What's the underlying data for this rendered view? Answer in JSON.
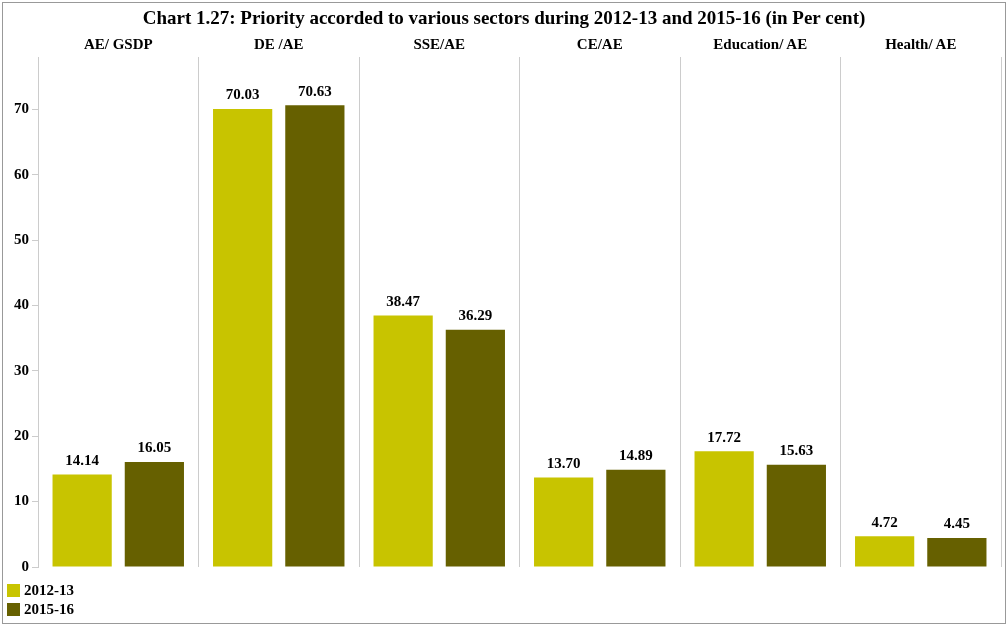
{
  "chart_data": {
    "type": "bar",
    "title": "Chart 1.27: Priority accorded to various sectors during 2012-13 and 2015-16 (in Per cent)",
    "categories": [
      "AE/ GSDP",
      "DE /AE",
      "SSE/AE",
      "CE/AE",
      "Education/ AE",
      "Health/ AE"
    ],
    "series": [
      {
        "name": "2012-13",
        "color": "#c8c400",
        "values": [
          14.14,
          70.03,
          38.47,
          13.7,
          17.72,
          4.72
        ]
      },
      {
        "name": "2015-16",
        "color": "#666000",
        "values": [
          16.05,
          70.63,
          36.29,
          14.89,
          15.63,
          4.45
        ]
      }
    ],
    "value_labels": [
      [
        "14.14",
        "70.03",
        "38.47",
        "13.70",
        "17.72",
        "4.72"
      ],
      [
        "16.05",
        "70.63",
        "36.29",
        "14.89",
        "15.63",
        "4.45"
      ]
    ],
    "ylim": [
      0,
      78
    ],
    "yticks": [
      0,
      10,
      20,
      30,
      40,
      50,
      60,
      70
    ],
    "grid": "x",
    "legend": "bottom left"
  }
}
